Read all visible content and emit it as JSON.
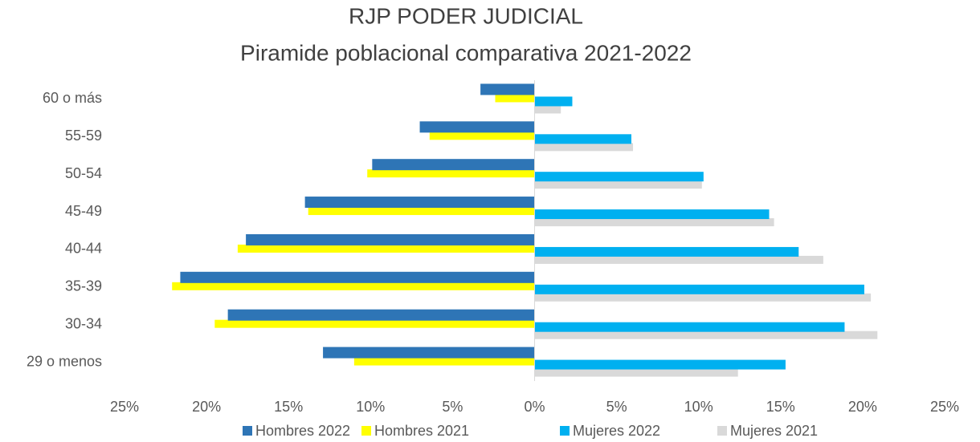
{
  "chart_data": {
    "type": "bar",
    "orientation": "horizontal",
    "title": "RJP PODER JUDICIAL",
    "subtitle": "Piramide poblacional comparativa 2021-2022",
    "categories": [
      "60 o más",
      "55-59",
      "50-54",
      "45-49",
      "40-44",
      "35-39",
      "30-34",
      "29 o menos"
    ],
    "series": [
      {
        "name": "Hombres 2022",
        "color": "#2e75b6",
        "values": [
          -3.3,
          -7.0,
          -9.9,
          -14.0,
          -17.6,
          -21.6,
          -18.7,
          -12.9
        ]
      },
      {
        "name": "Hombres 2021",
        "color": "#ffff00",
        "values": [
          -2.4,
          -6.4,
          -10.2,
          -13.8,
          -18.1,
          -22.1,
          -19.5,
          -11.0
        ]
      },
      {
        "name": "Mujeres 2022",
        "color": "#00b0f0",
        "values": [
          2.3,
          5.9,
          10.3,
          14.3,
          16.1,
          20.1,
          18.9,
          15.3
        ]
      },
      {
        "name": "Mujeres 2021",
        "color": "#d9d9d9",
        "values": [
          1.6,
          6.0,
          10.2,
          14.6,
          17.6,
          20.5,
          20.9,
          12.4
        ]
      }
    ],
    "xlim": [
      -25,
      25
    ],
    "xticks": [
      {
        "value": -25,
        "label": "25%"
      },
      {
        "value": -20,
        "label": "20%"
      },
      {
        "value": -15,
        "label": "15%"
      },
      {
        "value": -10,
        "label": "10%"
      },
      {
        "value": -5,
        "label": "5%"
      },
      {
        "value": 0,
        "label": "0%"
      },
      {
        "value": 5,
        "label": "5%"
      },
      {
        "value": 10,
        "label": "10%"
      },
      {
        "value": 15,
        "label": "15%"
      },
      {
        "value": 20,
        "label": "20%"
      },
      {
        "value": 25,
        "label": "25%"
      }
    ],
    "legend": "bottom"
  }
}
